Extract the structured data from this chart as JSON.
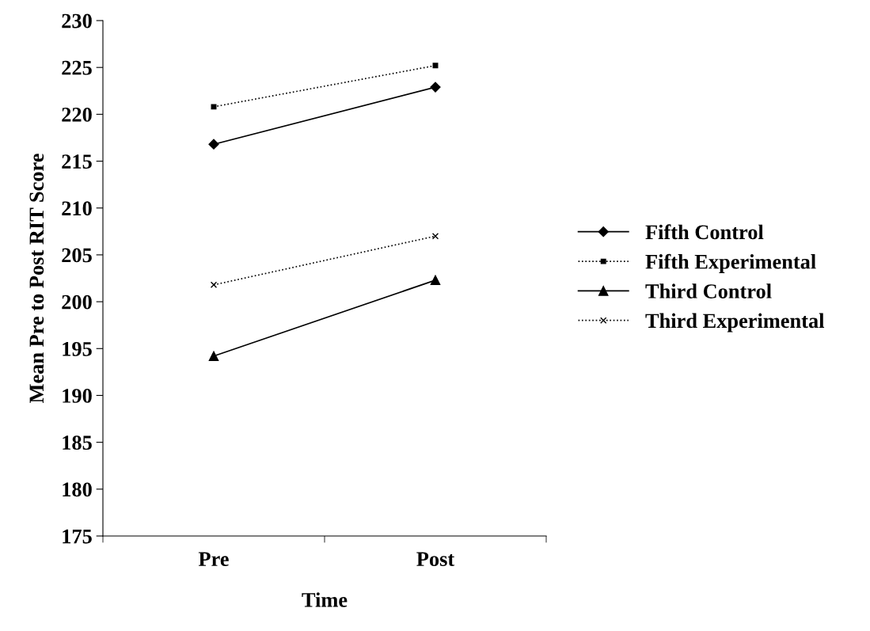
{
  "chart_data": {
    "type": "line",
    "xlabel": "Time",
    "ylabel": "Mean Pre to Post RIT Score",
    "categories": [
      "Pre",
      "Post"
    ],
    "ylim": [
      175,
      230
    ],
    "yticks": [
      175,
      180,
      185,
      190,
      195,
      200,
      205,
      210,
      215,
      220,
      225,
      230
    ],
    "grid": false,
    "legend": "right",
    "series": [
      {
        "name": "Fifth Control",
        "color": "#000000",
        "marker": "diamond",
        "line_style": "solid",
        "values": [
          216.8,
          222.9
        ]
      },
      {
        "name": "Fifth Experimental",
        "color": "#000000",
        "marker": "square",
        "line_style": "dotted",
        "values": [
          220.8,
          225.2
        ]
      },
      {
        "name": "Third Control",
        "color": "#000000",
        "marker": "triangle",
        "line_style": "solid",
        "values": [
          194.2,
          202.3
        ]
      },
      {
        "name": "Third Experimental",
        "color": "#000000",
        "marker": "cross",
        "line_style": "dotted",
        "values": [
          201.8,
          207.0
        ]
      }
    ]
  }
}
